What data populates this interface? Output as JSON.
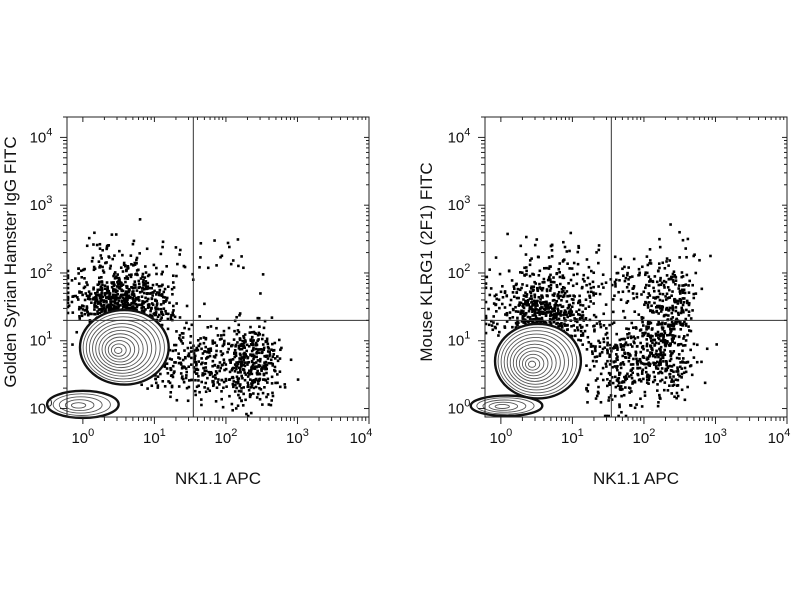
{
  "chart_data": [
    {
      "type": "scatter",
      "title": "",
      "xlabel": "NK1.1 APC",
      "ylabel": "Golden Syrian Hamster IgG FITC",
      "x_scale": "log",
      "y_scale": "log",
      "xlim": [
        0.6,
        10000
      ],
      "ylim": [
        0.75,
        20000
      ],
      "x_ticks": [
        {
          "base": "10",
          "exp": "0"
        },
        {
          "base": "10",
          "exp": "1"
        },
        {
          "base": "10",
          "exp": "2"
        },
        {
          "base": "10",
          "exp": "3"
        },
        {
          "base": "10",
          "exp": "4"
        }
      ],
      "y_ticks": [
        {
          "base": "10",
          "exp": "0"
        },
        {
          "base": "10",
          "exp": "1"
        },
        {
          "base": "10",
          "exp": "2"
        },
        {
          "base": "10",
          "exp": "3"
        },
        {
          "base": "10",
          "exp": "4"
        }
      ],
      "quadrant_gate": {
        "x": 35,
        "y": 20
      },
      "grid": false,
      "populations": [
        {
          "kind": "contour",
          "x_center": 3.8,
          "y_center": 8,
          "x_spread": 0.62,
          "y_spread": 0.55,
          "levels": 12
        },
        {
          "kind": "contour",
          "x_center": 1.0,
          "y_center": 1.15,
          "x_spread": 0.5,
          "y_spread": 0.2,
          "levels": 5
        },
        {
          "kind": "scatter",
          "x_center": 3.5,
          "y_center": 35,
          "x_spread": 0.35,
          "y_spread": 0.2,
          "count": 600
        },
        {
          "kind": "scatter",
          "x_center": 3.5,
          "y_center": 100,
          "x_spread": 0.35,
          "y_spread": 0.25,
          "count": 150
        },
        {
          "kind": "scatter",
          "x_center": 40,
          "y_center": 5,
          "x_spread": 0.35,
          "y_spread": 0.3,
          "count": 300
        },
        {
          "kind": "scatter",
          "x_center": 220,
          "y_center": 5,
          "x_spread": 0.2,
          "y_spread": 0.3,
          "count": 350
        },
        {
          "kind": "scatter",
          "x_center": 130,
          "y_center": 150,
          "x_spread": 0.3,
          "y_spread": 0.25,
          "count": 18
        }
      ]
    },
    {
      "type": "scatter",
      "title": "",
      "xlabel": "NK1.1 APC",
      "ylabel": "Mouse KLRG1 (2F1) FITC",
      "x_scale": "log",
      "y_scale": "log",
      "xlim": [
        0.6,
        10000
      ],
      "ylim": [
        0.75,
        20000
      ],
      "x_ticks": [
        {
          "base": "10",
          "exp": "0"
        },
        {
          "base": "10",
          "exp": "1"
        },
        {
          "base": "10",
          "exp": "2"
        },
        {
          "base": "10",
          "exp": "3"
        },
        {
          "base": "10",
          "exp": "4"
        }
      ],
      "y_ticks": [
        {
          "base": "10",
          "exp": "0"
        },
        {
          "base": "10",
          "exp": "1"
        },
        {
          "base": "10",
          "exp": "2"
        },
        {
          "base": "10",
          "exp": "3"
        },
        {
          "base": "10",
          "exp": "4"
        }
      ],
      "quadrant_gate": {
        "x": 35,
        "y": 20
      },
      "grid": false,
      "populations": [
        {
          "kind": "contour",
          "x_center": 3.3,
          "y_center": 5,
          "x_spread": 0.6,
          "y_spread": 0.55,
          "levels": 12
        },
        {
          "kind": "contour",
          "x_center": 1.2,
          "y_center": 1.1,
          "x_spread": 0.5,
          "y_spread": 0.15,
          "levels": 5
        },
        {
          "kind": "scatter",
          "x_center": 4,
          "y_center": 25,
          "x_spread": 0.35,
          "y_spread": 0.25,
          "count": 500
        },
        {
          "kind": "scatter",
          "x_center": 5,
          "y_center": 80,
          "x_spread": 0.35,
          "y_spread": 0.3,
          "count": 150
        },
        {
          "kind": "scatter",
          "x_center": 50,
          "y_center": 5,
          "x_spread": 0.3,
          "y_spread": 0.35,
          "count": 300
        },
        {
          "kind": "scatter",
          "x_center": 200,
          "y_center": 6,
          "x_spread": 0.2,
          "y_spread": 0.3,
          "count": 250
        },
        {
          "kind": "scatter",
          "x_center": 220,
          "y_center": 40,
          "x_spread": 0.2,
          "y_spread": 0.35,
          "count": 250
        },
        {
          "kind": "scatter",
          "x_center": 60,
          "y_center": 80,
          "x_spread": 0.3,
          "y_spread": 0.2,
          "count": 60
        }
      ]
    }
  ]
}
